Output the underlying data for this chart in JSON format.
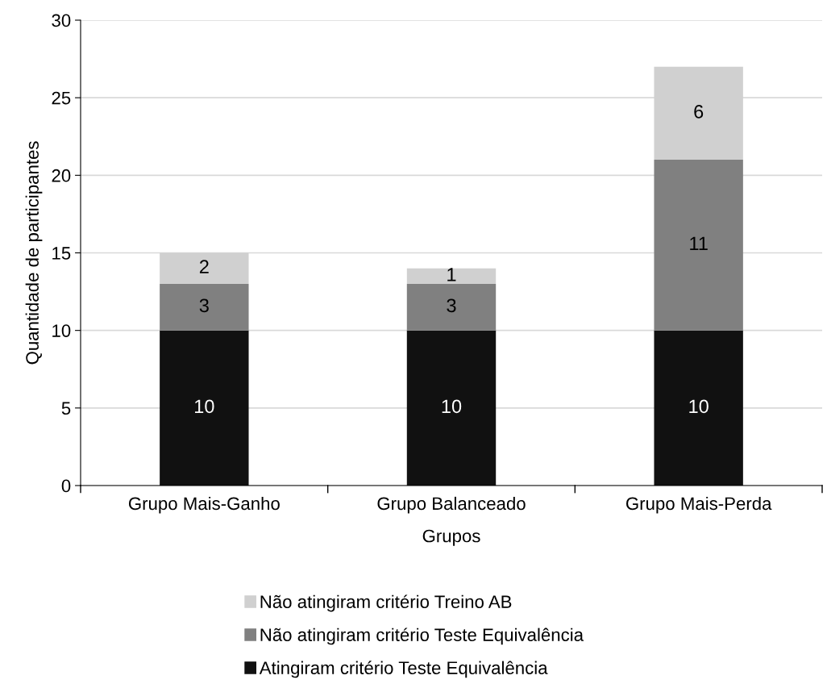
{
  "chart_data": {
    "type": "bar",
    "stacked": true,
    "xlabel": "Grupos",
    "ylabel": "Quantidade de participantes",
    "categories": [
      "Grupo Mais-Ganho",
      "Grupo Balanceado",
      "Grupo Mais-Perda"
    ],
    "series": [
      {
        "name": "Atingiram critério Teste Equivalência",
        "color": "#111111",
        "values": [
          10,
          10,
          10
        ]
      },
      {
        "name": "Não atingiram critério Teste Equivalência",
        "color": "#808080",
        "values": [
          3,
          3,
          11
        ]
      },
      {
        "name": "Não atingiram critério Treino AB",
        "color": "#d0d0d0",
        "values": [
          2,
          1,
          6
        ]
      }
    ],
    "ylim": [
      0,
      30
    ],
    "yticks": [
      0,
      5,
      10,
      15,
      20,
      25,
      30
    ],
    "grid": "y",
    "legend": "bottom",
    "data_labels": true
  }
}
